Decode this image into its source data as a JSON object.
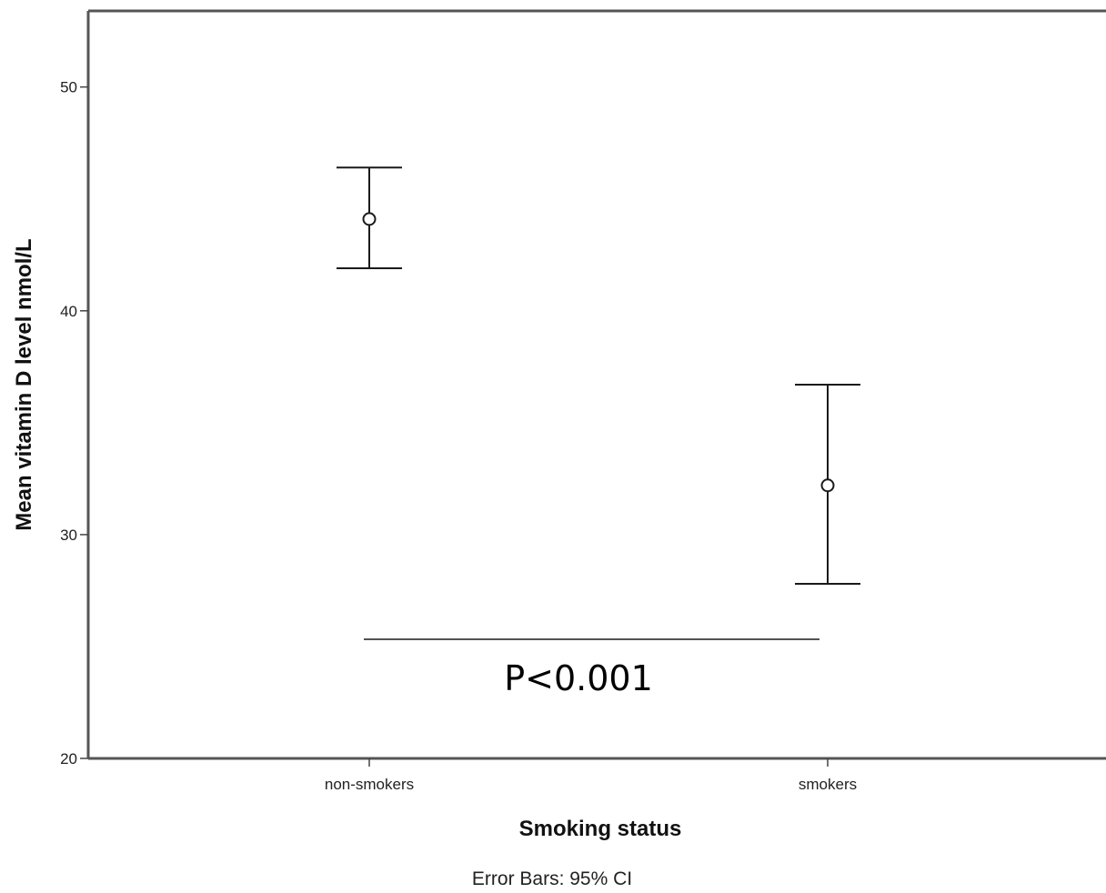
{
  "chart_data": {
    "type": "scatter",
    "subtype": "error-bar",
    "xlabel": "Smoking status",
    "ylabel": "Mean vitamin D level nmol/L",
    "categories": [
      "non-smokers",
      "smokers"
    ],
    "means": [
      44.1,
      32.2
    ],
    "ci_lower": [
      41.9,
      27.8
    ],
    "ci_upper": [
      46.4,
      36.7
    ],
    "ylim": [
      20,
      53.4
    ],
    "yticks": [
      20,
      30,
      40,
      50
    ],
    "grid": false,
    "annotation": "P<0.001",
    "note": "Error Bars: 95% CI"
  }
}
